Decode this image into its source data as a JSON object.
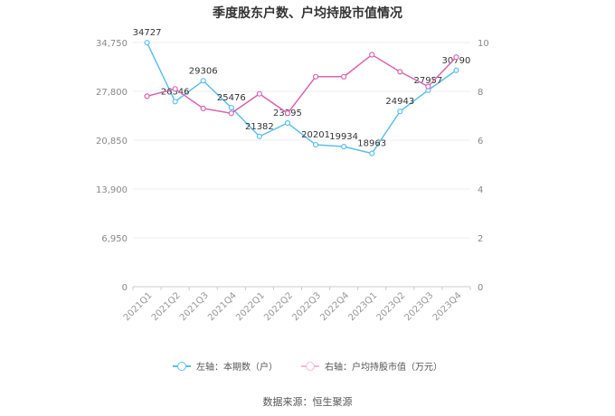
{
  "chart_data": {
    "type": "line",
    "title": "季度股东户数、户均持股市值情况",
    "categories": [
      "2021Q1",
      "2021Q2",
      "2021Q3",
      "2021Q4",
      "2022Q1",
      "2022Q2",
      "2022Q3",
      "2022Q4",
      "2023Q1",
      "2023Q2",
      "2023Q3",
      "2023Q4"
    ],
    "series": [
      {
        "name": "左轴：本期数（户）",
        "axis": "left",
        "color": "#5bc0eb",
        "values": [
          34727,
          26346,
          29306,
          25476,
          21382,
          23295,
          20201,
          19934,
          18963,
          24943,
          27957,
          30790
        ],
        "labels": [
          "34727",
          "26346",
          "29306",
          "25476",
          "21382",
          "23295",
          "20201",
          "19934",
          "18963",
          "24943",
          "27957",
          "30790"
        ]
      },
      {
        "name": "右轴：户均持股市值（万元）",
        "axis": "right",
        "color": "#d966b0",
        "values": [
          7.8,
          8.1,
          7.3,
          7.1,
          7.9,
          7.1,
          8.6,
          8.6,
          9.5,
          8.8,
          8.2,
          9.4
        ]
      }
    ],
    "y_left": {
      "ticks": [
        "0",
        "6,950",
        "13,900",
        "20,850",
        "27,800",
        "34,750"
      ],
      "tick_values": [
        0,
        6950,
        13900,
        20850,
        27800,
        34750
      ],
      "max": 34750
    },
    "y_right": {
      "ticks": [
        "0",
        "2",
        "4",
        "6",
        "8",
        "10"
      ],
      "tick_values": [
        0,
        2,
        4,
        6,
        8,
        10
      ],
      "max": 10
    },
    "grid": true,
    "legend_position": "bottom",
    "source": "数据来源：恒生聚源"
  }
}
